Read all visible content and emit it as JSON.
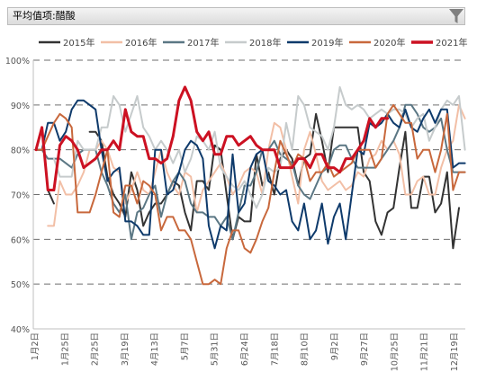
{
  "filter": {
    "label": "平均值项:醋酸",
    "dropdown_icon": "chevron-down-icon",
    "filter_icon": "funnel-icon"
  },
  "chart_data": {
    "type": "line",
    "grid": true,
    "legend_position": "top",
    "ylim": [
      40,
      100
    ],
    "y_ticks": [
      "40%",
      "50%",
      "60%",
      "70%",
      "80%",
      "90%",
      "100%"
    ],
    "x_ticks": [
      "1月2日",
      "1月25日",
      "2月25日",
      "3月19日",
      "4月13日",
      "5月7日",
      "5月31日",
      "6月24日",
      "7月18日",
      "8月10日",
      "9月2日",
      "9月27日",
      "10月25日",
      "11月21日",
      "12月19日"
    ],
    "series": [
      {
        "name": "2015年",
        "color": "#333333",
        "width": 2,
        "values": [
          null,
          null,
          71,
          68,
          null,
          null,
          null,
          null,
          null,
          84,
          84,
          82,
          74,
          70,
          68,
          65,
          75,
          71,
          63,
          66,
          68,
          68,
          70,
          73,
          72,
          66,
          62,
          73,
          73,
          71,
          81,
          80,
          70,
          60,
          65,
          64,
          64,
          79,
          72,
          75,
          70,
          78,
          80,
          78,
          72,
          78,
          79,
          88,
          82,
          75,
          85,
          85,
          85,
          85,
          85,
          75,
          73,
          64,
          61,
          66,
          67,
          76,
          84,
          67,
          67,
          74,
          74,
          66,
          68,
          75,
          58,
          67
        ]
      },
      {
        "name": "2016年",
        "color": "#f2bfa6",
        "width": 2,
        "values": [
          null,
          null,
          63,
          63,
          73,
          70,
          70,
          72,
          75,
          80,
          80,
          82,
          80,
          76,
          75,
          68,
          71,
          75,
          71,
          70,
          75,
          80,
          75,
          72,
          70,
          75,
          74,
          66,
          71,
          73,
          75,
          77,
          74,
          70,
          72,
          75,
          76,
          75,
          70,
          80,
          86,
          85,
          80,
          74,
          68,
          80,
          84,
          79,
          73,
          71,
          72,
          73,
          71,
          72,
          75,
          74,
          78,
          79,
          82,
          80,
          82,
          79,
          70,
          70,
          73,
          74,
          70,
          70,
          76,
          80,
          82,
          90,
          87
        ]
      },
      {
        "name": "2017年",
        "color": "#5b7784",
        "width": 2,
        "values": [
          80,
          80,
          78,
          78,
          78,
          77,
          76,
          79,
          80,
          80,
          80,
          75,
          72,
          68,
          66,
          70,
          60,
          66,
          67,
          70,
          72,
          65,
          70,
          73,
          75,
          73,
          68,
          66,
          66,
          65,
          65,
          63,
          65,
          60,
          66,
          72,
          72,
          75,
          80,
          80,
          82,
          79,
          78,
          77,
          72,
          70,
          69,
          72,
          75,
          76,
          80,
          81,
          81,
          78,
          76,
          76,
          76,
          76,
          78,
          80,
          82,
          85,
          90,
          90,
          88,
          85,
          84,
          85,
          87,
          80,
          75,
          75,
          75
        ]
      },
      {
        "name": "2018年",
        "color": "#c6cbcc",
        "width": 2,
        "values": [
          null,
          null,
          null,
          78,
          74,
          74,
          74,
          82,
          80,
          80,
          80,
          85,
          85,
          92,
          90,
          84,
          88,
          92,
          85,
          83,
          80,
          82,
          80,
          77,
          80,
          75,
          78,
          83,
          82,
          80,
          84,
          76,
          74,
          72,
          71,
          73,
          70,
          67,
          70,
          76,
          75,
          76,
          86,
          80,
          92,
          90,
          85,
          84,
          83,
          80,
          85,
          94,
          90,
          89,
          90,
          89,
          87,
          88,
          89,
          88,
          89,
          89,
          88,
          85,
          87,
          88,
          82,
          85,
          89,
          91,
          90,
          92,
          80
        ]
      },
      {
        "name": "2019年",
        "color": "#0e3a6b",
        "width": 2,
        "values": [
          80,
          80,
          86,
          86,
          82,
          84,
          89,
          91,
          91,
          90,
          89,
          80,
          73,
          75,
          76,
          64,
          64,
          63,
          61,
          61,
          80,
          80,
          70,
          71,
          75,
          80,
          82,
          81,
          78,
          63,
          58,
          63,
          62,
          79,
          66,
          68,
          76,
          79,
          80,
          73,
          72,
          70,
          71,
          64,
          62,
          68,
          60,
          62,
          68,
          59,
          65,
          68,
          60,
          70,
          80,
          79,
          86,
          85,
          86,
          88,
          86,
          85,
          89,
          85,
          84,
          87,
          89,
          86,
          89,
          89,
          76,
          77,
          77
        ]
      },
      {
        "name": "2020年",
        "color": "#c8683c",
        "width": 2,
        "values": [
          80,
          80,
          83,
          86,
          88,
          87,
          85,
          66,
          66,
          66,
          70,
          75,
          80,
          66,
          65,
          72,
          72,
          68,
          73,
          72,
          70,
          62,
          65,
          65,
          62,
          62,
          60,
          55,
          50,
          50,
          51,
          50,
          58,
          62,
          62,
          58,
          57,
          60,
          64,
          67,
          75,
          82,
          79,
          76,
          79,
          78,
          73,
          75,
          75,
          77,
          74,
          75,
          76,
          77,
          80,
          80,
          80,
          76,
          78,
          88,
          90,
          88,
          86,
          86,
          78,
          80,
          80,
          75,
          80,
          88,
          71,
          75,
          75
        ]
      },
      {
        "name": "2021年",
        "color": "#cc1122",
        "width": 3,
        "values": [
          80,
          85,
          71,
          71,
          81,
          83,
          82,
          80,
          76,
          77,
          78,
          80,
          80,
          82,
          80,
          89,
          84,
          83,
          83,
          78,
          78,
          77,
          78,
          83,
          91,
          94,
          91,
          84,
          82,
          84,
          79,
          79,
          83,
          83,
          81,
          82,
          83,
          81,
          80,
          80,
          80,
          76,
          76,
          76,
          78,
          78,
          76,
          79,
          79,
          76,
          76,
          75,
          78,
          78,
          80,
          82,
          87,
          85,
          87,
          87
        ]
      }
    ]
  }
}
